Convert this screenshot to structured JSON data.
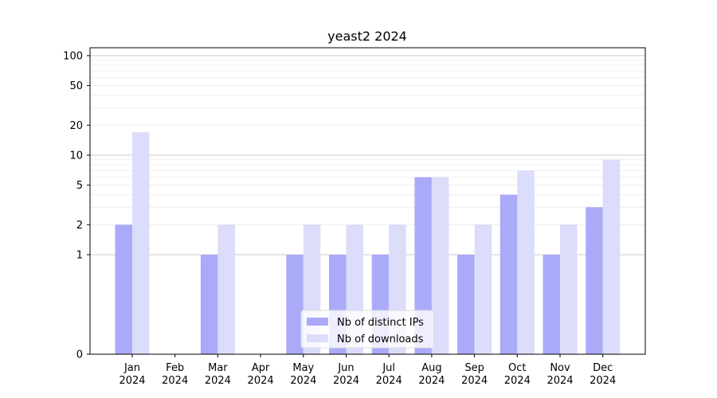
{
  "chart_data": {
    "type": "bar",
    "title": "yeast2 2024",
    "xlabel": "",
    "ylabel": "",
    "yscale": "symlog",
    "ylim": [
      0,
      120
    ],
    "yticks": [
      0,
      1,
      2,
      5,
      10,
      20,
      50,
      100
    ],
    "grid": true,
    "legend_position": "bottom-center",
    "categories": [
      [
        "Jan",
        "2024"
      ],
      [
        "Feb",
        "2024"
      ],
      [
        "Mar",
        "2024"
      ],
      [
        "Apr",
        "2024"
      ],
      [
        "May",
        "2024"
      ],
      [
        "Jun",
        "2024"
      ],
      [
        "Jul",
        "2024"
      ],
      [
        "Aug",
        "2024"
      ],
      [
        "Sep",
        "2024"
      ],
      [
        "Oct",
        "2024"
      ],
      [
        "Nov",
        "2024"
      ],
      [
        "Dec",
        "2024"
      ]
    ],
    "series": [
      {
        "name": "Nb of distinct IPs",
        "color": "#aaaaf9",
        "values": [
          2,
          0,
          1,
          0,
          1,
          1,
          1,
          6,
          1,
          4,
          1,
          3
        ]
      },
      {
        "name": "Nb of downloads",
        "color": "#dcdcfb",
        "values": [
          17,
          0,
          2,
          0,
          2,
          2,
          2,
          6,
          2,
          7,
          2,
          9
        ]
      }
    ]
  }
}
